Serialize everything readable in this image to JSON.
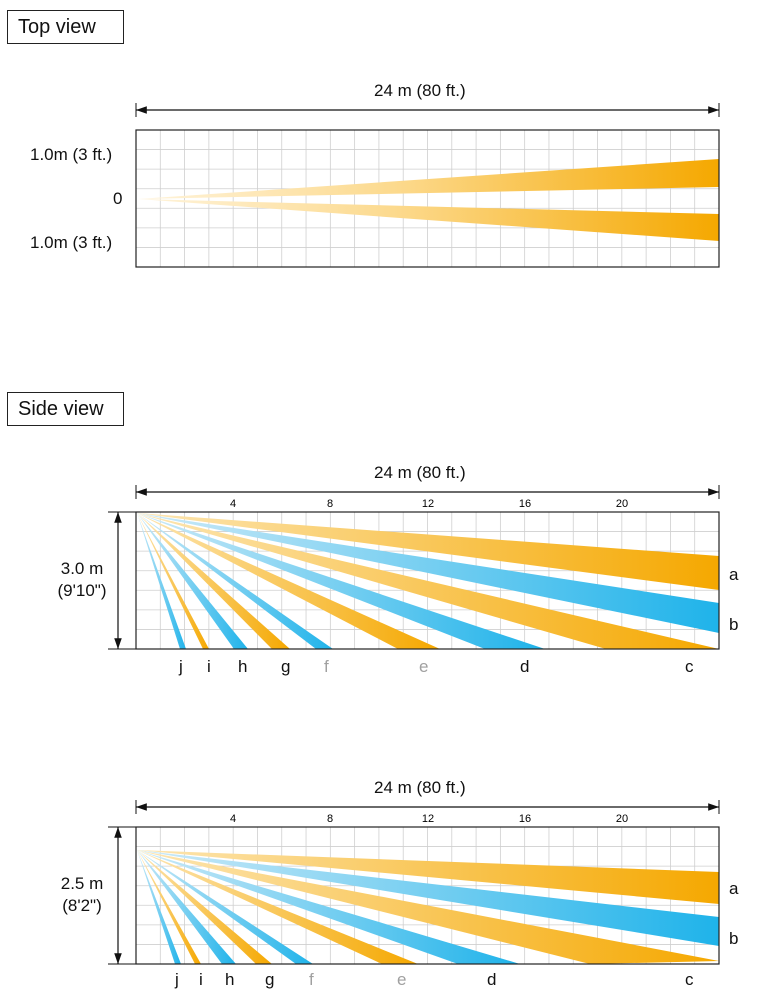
{
  "top_view": {
    "label": "Top view",
    "range_label": "24 m (80 ft.)",
    "y_labels": [
      "1.0m (3 ft.)",
      "0",
      "1.0m (3 ft.)"
    ]
  },
  "side_view": {
    "label": "Side view",
    "diagrams": [
      {
        "range_label": "24 m (80 ft.)",
        "height_label_line1": "3.0 m",
        "height_label_line2": "(9'10\")",
        "ticks": [
          "4",
          "8",
          "12",
          "16",
          "20"
        ],
        "beam_labels_right": [
          "a",
          "b"
        ],
        "beam_labels_bottom": [
          "j",
          "i",
          "h",
          "g",
          "f",
          "e",
          "d",
          "c"
        ]
      },
      {
        "range_label": "24 m (80 ft.)",
        "height_label_line1": "2.5 m",
        "height_label_line2": "(8'2\")",
        "ticks": [
          "4",
          "8",
          "12",
          "16",
          "20"
        ],
        "beam_labels_right": [
          "a",
          "b"
        ],
        "beam_labels_bottom": [
          "j",
          "i",
          "h",
          "g",
          "f",
          "e",
          "d",
          "c"
        ]
      }
    ]
  },
  "colors": {
    "orange": "#f5a800",
    "orange_light": "#fde3a6",
    "blue": "#1fb3ea",
    "blue_light": "#bfe6f8",
    "grid": "#cfcfcf",
    "gray_label": "#a0a0a0"
  }
}
